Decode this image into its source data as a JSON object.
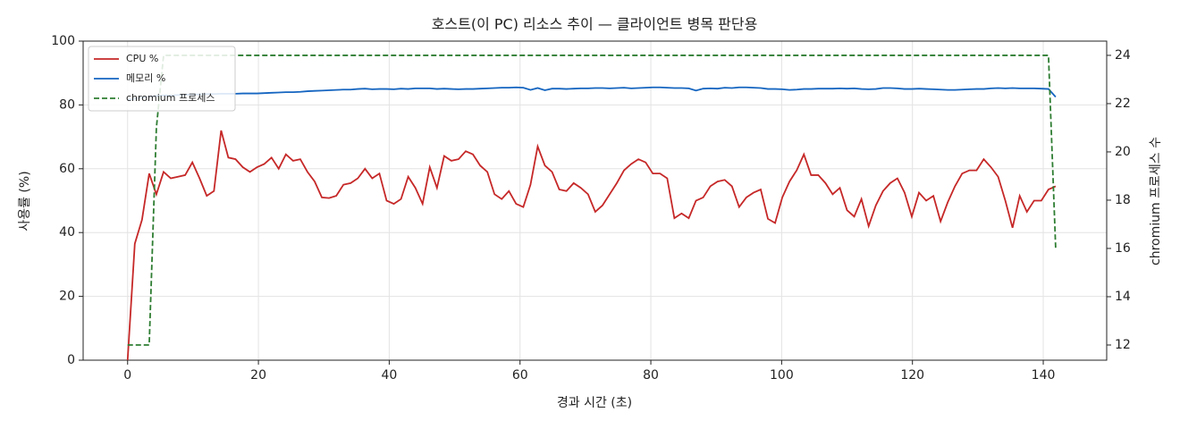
{
  "chart_data": {
    "type": "line",
    "title": "호스트(이 PC) 리소스 추이 — 클라이언트 병목 판단용",
    "xlabel": "경과 시간 (초)",
    "ylabel": "사용률 (%)",
    "y2label": "chromium 프로세스 수",
    "x": [
      0,
      1.1,
      2.2,
      3.3,
      4.4,
      5.5,
      6.6,
      7.7,
      8.8,
      9.9,
      11,
      12.1,
      13.2,
      14.3,
      15.4,
      16.5,
      17.6,
      18.7,
      19.8,
      20.9,
      22,
      23.1,
      24.2,
      25.3,
      26.4,
      27.5,
      28.6,
      29.7,
      30.8,
      31.9,
      33,
      34.1,
      35.2,
      36.3,
      37.4,
      38.5,
      39.6,
      40.7,
      41.8,
      42.9,
      44,
      45.1,
      46.2,
      47.3,
      48.4,
      49.5,
      50.6,
      51.7,
      52.8,
      53.9,
      55,
      56.1,
      57.2,
      58.3,
      59.4,
      60.5,
      61.6,
      62.7,
      63.8,
      64.9,
      66,
      67.1,
      68.2,
      69.3,
      70.4,
      71.5,
      72.6,
      73.7,
      74.8,
      75.9,
      77,
      78.1,
      79.2,
      80.3,
      81.4,
      82.5,
      83.6,
      84.7,
      85.8,
      86.9,
      88,
      89.1,
      90.2,
      91.3,
      92.4,
      93.5,
      94.6,
      95.7,
      96.8,
      97.9,
      99,
      100.1,
      101.2,
      102.3,
      103.4,
      104.5,
      105.6,
      106.7,
      107.8,
      108.9,
      110,
      111.1,
      112.2,
      113.3,
      114.4,
      115.5,
      116.6,
      117.7,
      118.8,
      119.9,
      121,
      122.1,
      123.2,
      124.3,
      125.4,
      126.5,
      127.6,
      128.7,
      129.8,
      130.9,
      132,
      133.1,
      134.2,
      135.3,
      136.4,
      137.5,
      138.6,
      139.7,
      140.8,
      141.9
    ],
    "series": [
      {
        "name": "CPU %",
        "color": "#c62828",
        "values": [
          0,
          36.5,
          44,
          58.5,
          52,
          59,
          57,
          57.5,
          58,
          62,
          57,
          51.5,
          53,
          72,
          63.5,
          63,
          60.5,
          59,
          60.5,
          61.5,
          63.5,
          60,
          64.5,
          62.5,
          63,
          59,
          56,
          51,
          50.8,
          51.5,
          55,
          55.5,
          57,
          60,
          57,
          58.5,
          50,
          49,
          50.5,
          57.5,
          54,
          49,
          60.5,
          54,
          64,
          62.5,
          63,
          65.5,
          64.5,
          61,
          59,
          52,
          50.5,
          53,
          49,
          48,
          55,
          67,
          61,
          59,
          53.5,
          53,
          55.5,
          54,
          52,
          46.5,
          48.5,
          52,
          55.5,
          59.5,
          61.5,
          63,
          62,
          58.5,
          58.5,
          57,
          44.5,
          46,
          44.5,
          50,
          51,
          54.5,
          56,
          56.5,
          54.5,
          48,
          51,
          52.5,
          53.5,
          44.3,
          43,
          51,
          56,
          59.5,
          64.5,
          58,
          58,
          55.5,
          52,
          54,
          47,
          45,
          50.5,
          42,
          48.5,
          53,
          55.5,
          57,
          52.5,
          45,
          52.5,
          50,
          51.5,
          43.5,
          49.5,
          54.5,
          58.5,
          59.5,
          59.5,
          63,
          60.5,
          57.5,
          50,
          41.5,
          51.5,
          46.5,
          50,
          50,
          53.5,
          54.5
        ]
      },
      {
        "name": "메모리 %",
        "color": "#1565c0",
        "values": [
          81.5,
          82,
          82.3,
          82.6,
          82.8,
          83,
          83,
          83.1,
          83.2,
          83.3,
          83.3,
          83.4,
          83.4,
          83.5,
          83.5,
          83.5,
          83.6,
          83.6,
          83.6,
          83.7,
          83.8,
          83.9,
          84,
          84,
          84.1,
          84.3,
          84.4,
          84.5,
          84.6,
          84.7,
          84.8,
          84.8,
          85,
          85.1,
          84.9,
          85,
          85,
          84.9,
          85.1,
          85,
          85.2,
          85.2,
          85.2,
          85,
          85.1,
          85,
          84.9,
          85,
          85,
          85.1,
          85.2,
          85.3,
          85.4,
          85.4,
          85.5,
          85.4,
          84.7,
          85.3,
          84.6,
          85.1,
          85.1,
          85,
          85.1,
          85.2,
          85.2,
          85.3,
          85.3,
          85.2,
          85.3,
          85.4,
          85.2,
          85.3,
          85.4,
          85.5,
          85.5,
          85.4,
          85.3,
          85.3,
          85.2,
          84.5,
          85.1,
          85.2,
          85.1,
          85.4,
          85.3,
          85.5,
          85.5,
          85.4,
          85.3,
          85,
          85,
          84.9,
          84.7,
          84.8,
          85,
          85,
          85.1,
          85.1,
          85.1,
          85.2,
          85.1,
          85.2,
          85,
          84.9,
          85,
          85.3,
          85.3,
          85.2,
          85,
          85,
          85.1,
          85,
          84.9,
          84.8,
          84.7,
          84.7,
          84.8,
          84.9,
          85,
          85,
          85.2,
          85.3,
          85.2,
          85.3,
          85.2,
          85.2,
          85.2,
          85.1,
          85,
          82.5
        ]
      },
      {
        "name": "chromium 프로세스",
        "color": "#2e7d32",
        "dashed": true,
        "axis": "y2",
        "values": [
          12,
          12,
          12,
          12,
          21,
          24,
          24,
          24,
          24,
          24,
          24,
          24,
          24,
          24,
          24,
          24,
          24,
          24,
          24,
          24,
          24,
          24,
          24,
          24,
          24,
          24,
          24,
          24,
          24,
          24,
          24,
          24,
          24,
          24,
          24,
          24,
          24,
          24,
          24,
          24,
          24,
          24,
          24,
          24,
          24,
          24,
          24,
          24,
          24,
          24,
          24,
          24,
          24,
          24,
          24,
          24,
          24,
          24,
          24,
          24,
          24,
          24,
          24,
          24,
          24,
          24,
          24,
          24,
          24,
          24,
          24,
          24,
          24,
          24,
          24,
          24,
          24,
          24,
          24,
          24,
          24,
          24,
          24,
          24,
          24,
          24,
          24,
          24,
          24,
          24,
          24,
          24,
          24,
          24,
          24,
          24,
          24,
          24,
          24,
          24,
          24,
          24,
          24,
          24,
          24,
          24,
          24,
          24,
          24,
          24,
          24,
          24,
          24,
          24,
          24,
          24,
          24,
          24,
          24,
          24,
          24,
          24,
          24,
          24,
          24,
          24,
          24,
          24,
          24,
          16
        ]
      }
    ],
    "xlim": [
      -6.8,
      149.7
    ],
    "xticks": [
      0,
      20,
      40,
      60,
      80,
      100,
      120,
      140
    ],
    "ylim": [
      0,
      100
    ],
    "yticks": [
      0,
      20,
      40,
      60,
      80,
      100
    ],
    "y2lim": [
      11.37,
      24.59
    ],
    "y2ticks": [
      12,
      14,
      16,
      18,
      20,
      22,
      24
    ],
    "grid": true,
    "legend": "upper left"
  }
}
